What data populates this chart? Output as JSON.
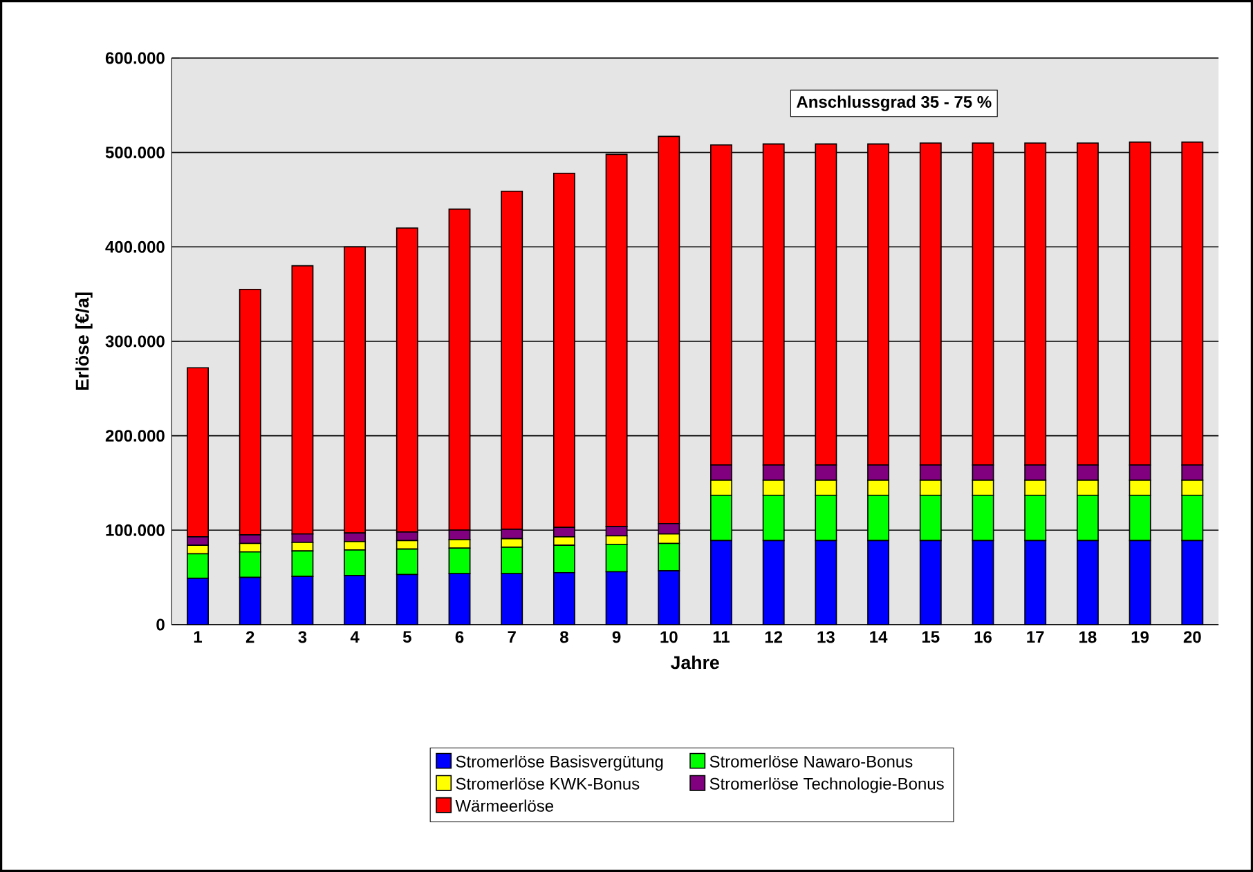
{
  "chart_data": {
    "type": "bar",
    "stacked": true,
    "xlabel": "Jahre",
    "ylabel": "Erlöse [€/a]",
    "categories": [
      "1",
      "2",
      "3",
      "4",
      "5",
      "6",
      "7",
      "8",
      "9",
      "10",
      "11",
      "12",
      "13",
      "14",
      "15",
      "16",
      "17",
      "18",
      "19",
      "20"
    ],
    "series": [
      {
        "name": "Stromerlöse Basisvergütung",
        "color": "#0000ff",
        "values": [
          49000,
          50000,
          51000,
          52000,
          53000,
          54000,
          54000,
          55000,
          56000,
          57000,
          89000,
          89000,
          89000,
          89000,
          89000,
          89000,
          89000,
          89000,
          89000,
          89000
        ]
      },
      {
        "name": "Stromerlöse Nawaro-Bonus",
        "color": "#00ff00",
        "values": [
          26000,
          27000,
          27000,
          27000,
          27000,
          27000,
          28000,
          29000,
          29000,
          29000,
          48000,
          48000,
          48000,
          48000,
          48000,
          48000,
          48000,
          48000,
          48000,
          48000
        ]
      },
      {
        "name": "Stromerlöse KWK-Bonus",
        "color": "#ffff00",
        "values": [
          9000,
          9000,
          9000,
          9000,
          9000,
          9000,
          9000,
          9000,
          9000,
          10000,
          16000,
          16000,
          16000,
          16000,
          16000,
          16000,
          16000,
          16000,
          16000,
          16000
        ]
      },
      {
        "name": "Stromerlöse Technologie-Bonus",
        "color": "#800080",
        "values": [
          9000,
          9000,
          9000,
          9000,
          9000,
          10000,
          10000,
          10000,
          10000,
          11000,
          16000,
          16000,
          16000,
          16000,
          16000,
          16000,
          16000,
          16000,
          16000,
          16000
        ]
      },
      {
        "name": "Wärmeerlöse",
        "color": "#ff0000",
        "values": [
          179000,
          260000,
          284000,
          303000,
          322000,
          340000,
          358000,
          375000,
          394000,
          410000,
          339000,
          340000,
          340000,
          340000,
          341000,
          341000,
          341000,
          341000,
          342000,
          342000
        ]
      }
    ],
    "ylim": [
      0,
      600000
    ],
    "yticks": [
      0,
      {
        "value": 100000,
        "label": "100.000"
      },
      {
        "value": 200000,
        "label": "200.000"
      },
      {
        "value": 300000,
        "label": "300.000"
      },
      {
        "value": 400000,
        "label": "400.000"
      },
      {
        "value": 500000,
        "label": "500.000"
      },
      {
        "value": 600000,
        "label": "600.000"
      }
    ],
    "grid": "y",
    "legend": "bottom",
    "annotations": [
      "Anschlussgrad 35 - 75 %"
    ]
  }
}
